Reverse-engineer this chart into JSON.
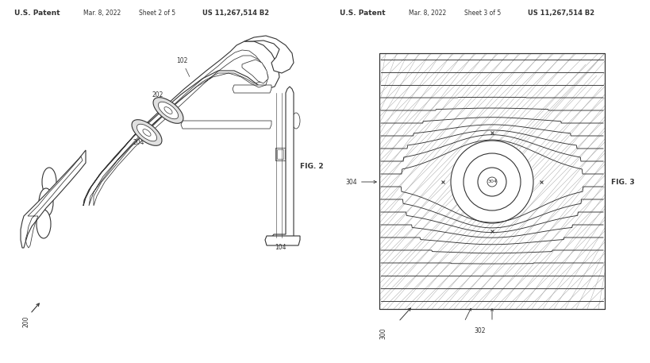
{
  "background_color": "#ffffff",
  "left_header": {
    "patent": "U.S. Patent",
    "date": "Mar. 8, 2022",
    "sheet": "Sheet 2 of 5",
    "number": "US 11,267,514 B2"
  },
  "right_header": {
    "patent": "U.S. Patent",
    "date": "Mar. 8, 2022",
    "sheet": "Sheet 3 of 5",
    "number": "US 11,267,514 B2"
  },
  "fig2_label": "FIG. 2",
  "fig3_label": "FIG. 3",
  "line_color": "#333333",
  "hatch_color": "#aaaaaa"
}
